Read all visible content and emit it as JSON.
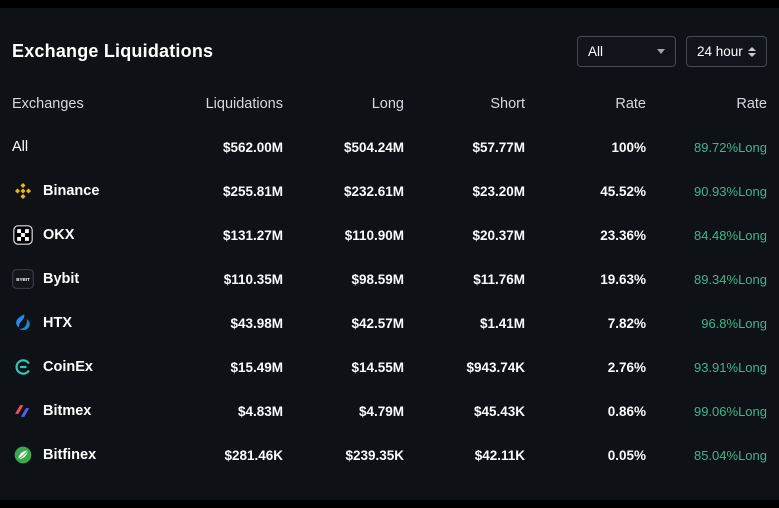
{
  "header": {
    "title": "Exchange Liquidations",
    "exchange_filter": {
      "value": "All"
    },
    "time_filter": {
      "value": "24 hour"
    }
  },
  "colors": {
    "long_rate_green": "#3fb68b",
    "binance_yellow": "#F0B90B",
    "panel_background": "#0e1116"
  },
  "table": {
    "columns": [
      "Exchanges",
      "Liquidations",
      "Long",
      "Short",
      "Rate",
      "Rate"
    ],
    "rows": [
      {
        "name": "All",
        "icon": "",
        "liquidations": "$562.00M",
        "long": "$504.24M",
        "short": "$57.77M",
        "rate": "100%",
        "long_rate": "89.72%Long"
      },
      {
        "name": "Binance",
        "icon": "binance-icon",
        "liquidations": "$255.81M",
        "long": "$232.61M",
        "short": "$23.20M",
        "rate": "45.52%",
        "long_rate": "90.93%Long"
      },
      {
        "name": "OKX",
        "icon": "okx-icon",
        "liquidations": "$131.27M",
        "long": "$110.90M",
        "short": "$20.37M",
        "rate": "23.36%",
        "long_rate": "84.48%Long"
      },
      {
        "name": "Bybit",
        "icon": "bybit-icon",
        "liquidations": "$110.35M",
        "long": "$98.59M",
        "short": "$11.76M",
        "rate": "19.63%",
        "long_rate": "89.34%Long"
      },
      {
        "name": "HTX",
        "icon": "htx-icon",
        "liquidations": "$43.98M",
        "long": "$42.57M",
        "short": "$1.41M",
        "rate": "7.82%",
        "long_rate": "96.8%Long"
      },
      {
        "name": "CoinEx",
        "icon": "coinex-icon",
        "liquidations": "$15.49M",
        "long": "$14.55M",
        "short": "$943.74K",
        "rate": "2.76%",
        "long_rate": "93.91%Long"
      },
      {
        "name": "Bitmex",
        "icon": "bitmex-icon",
        "liquidations": "$4.83M",
        "long": "$4.79M",
        "short": "$45.43K",
        "rate": "0.86%",
        "long_rate": "99.06%Long"
      },
      {
        "name": "Bitfinex",
        "icon": "bitfinex-icon",
        "liquidations": "$281.46K",
        "long": "$239.35K",
        "short": "$42.11K",
        "rate": "0.05%",
        "long_rate": "85.04%Long"
      }
    ]
  }
}
